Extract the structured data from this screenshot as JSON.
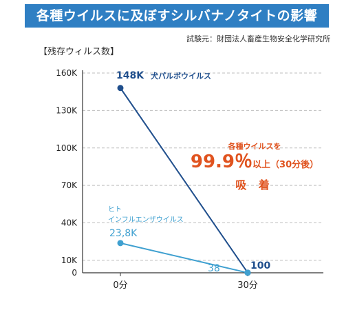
{
  "header": {
    "title": "各種ウイルスに及ぼすシルバナノタイトの影響",
    "source": "試験元：財団法人畜産生物安全化学研究所"
  },
  "annotation": {
    "line1": "各種ウイルスを",
    "line2_main": "99.9％",
    "line2_suffix": "以上（30分後）",
    "line3": "吸 着"
  },
  "colors": {
    "title_bg": "#2f7fc3",
    "series_dog": "#1f4e8c",
    "series_human": "#3fa0d0",
    "accent": "#e0531f",
    "grid": "#bdbdbd"
  },
  "chart_data": {
    "type": "line",
    "ylabel": "【残存ウィルス数】",
    "x": [
      "0分",
      "30分"
    ],
    "ylim": [
      0,
      160000
    ],
    "yticks": [
      0,
      10000,
      40000,
      70000,
      100000,
      130000,
      160000
    ],
    "ytick_labels": [
      "0",
      "10K",
      "40K",
      "70K",
      "100K",
      "130K",
      "160K"
    ],
    "grid": true,
    "series": [
      {
        "name": "犬パルボウイルス",
        "values": [
          148000,
          100
        ],
        "labels": [
          "148K",
          "100"
        ]
      },
      {
        "name": "ヒト インフルエンザウイルス",
        "name_lines": [
          "ヒト",
          "インフルエンザウイルス"
        ],
        "values": [
          23800,
          38
        ],
        "labels": [
          "23,8K",
          "38"
        ]
      }
    ]
  }
}
